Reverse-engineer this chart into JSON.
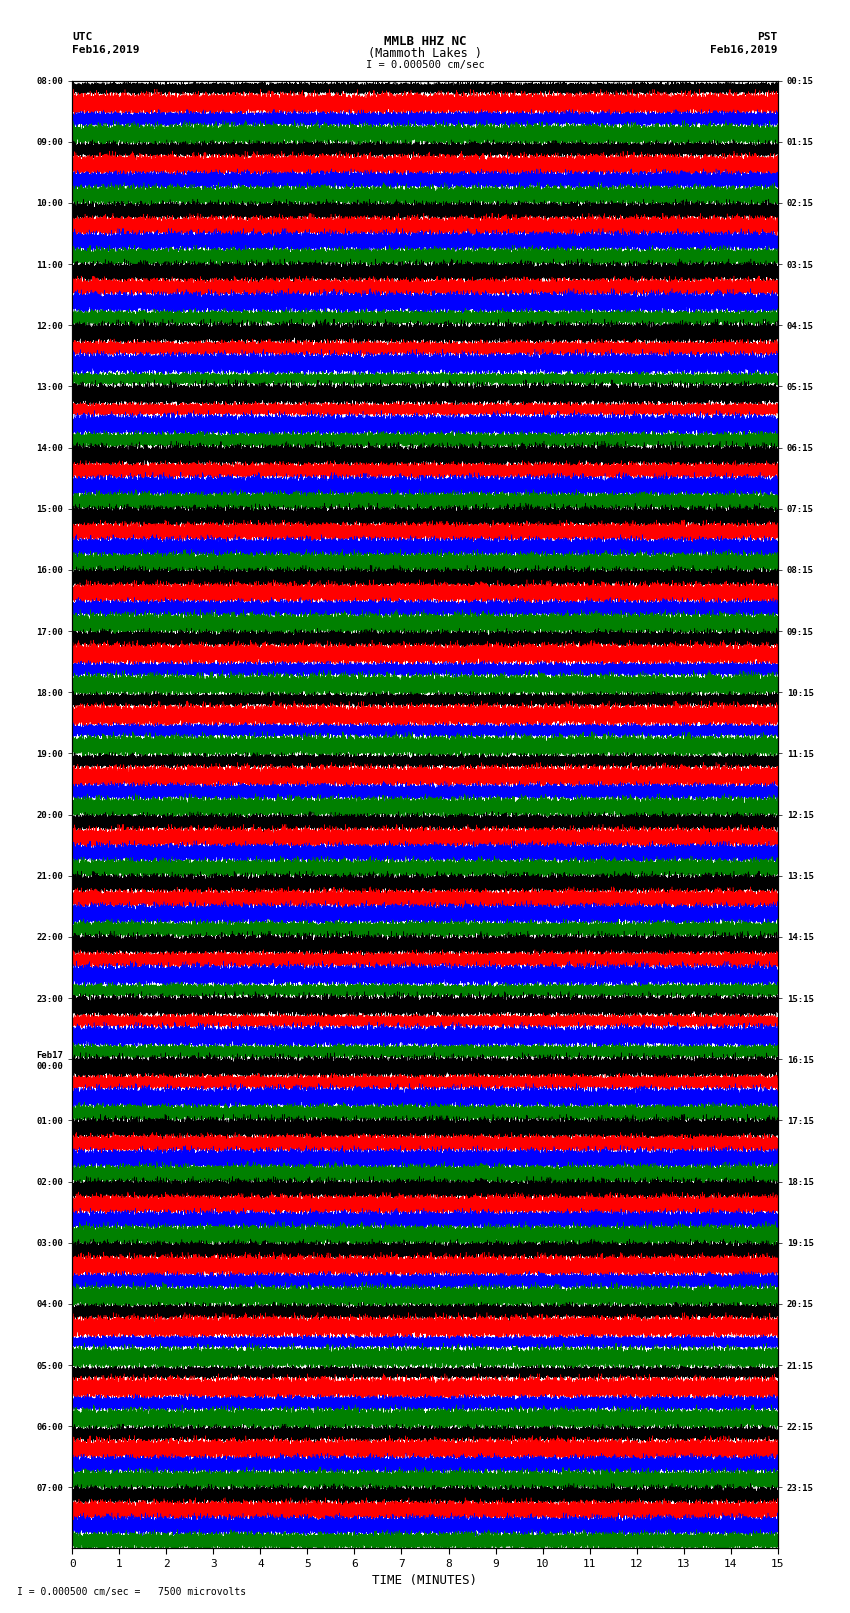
{
  "title_line1": "MMLB HHZ NC",
  "title_line2": "(Mammoth Lakes )",
  "scale_text": "I = 0.000500 cm/sec",
  "bottom_scale_text": "I = 0.000500 cm/sec =   7500 microvolts",
  "left_label": "UTC",
  "left_date": "Feb16,2019",
  "right_label": "PST",
  "right_date": "Feb16,2019",
  "xlabel": "TIME (MINUTES)",
  "xlim": [
    0,
    15
  ],
  "xticks": [
    0,
    1,
    2,
    3,
    4,
    5,
    6,
    7,
    8,
    9,
    10,
    11,
    12,
    13,
    14,
    15
  ],
  "colors": [
    "black",
    "red",
    "blue",
    "green"
  ],
  "bg_color": "#ffffff",
  "trace_color_order": [
    "black",
    "red",
    "blue",
    "green"
  ],
  "n_minutes": 15,
  "sample_rate": 50,
  "left_times_utc": [
    "08:00",
    "09:00",
    "10:00",
    "11:00",
    "12:00",
    "13:00",
    "14:00",
    "15:00",
    "16:00",
    "17:00",
    "18:00",
    "19:00",
    "20:00",
    "21:00",
    "22:00",
    "23:00",
    "Feb17\n00:00",
    "01:00",
    "02:00",
    "03:00",
    "04:00",
    "05:00",
    "06:00",
    "07:00"
  ],
  "right_times_pst": [
    "00:15",
    "01:15",
    "02:15",
    "03:15",
    "04:15",
    "05:15",
    "06:15",
    "07:15",
    "08:15",
    "09:15",
    "10:15",
    "11:15",
    "12:15",
    "13:15",
    "14:15",
    "15:15",
    "16:15",
    "17:15",
    "18:15",
    "19:15",
    "20:15",
    "21:15",
    "22:15",
    "23:15"
  ],
  "n_rows": 24,
  "traces_per_row": 4,
  "figsize": [
    8.5,
    16.13
  ],
  "dpi": 100
}
